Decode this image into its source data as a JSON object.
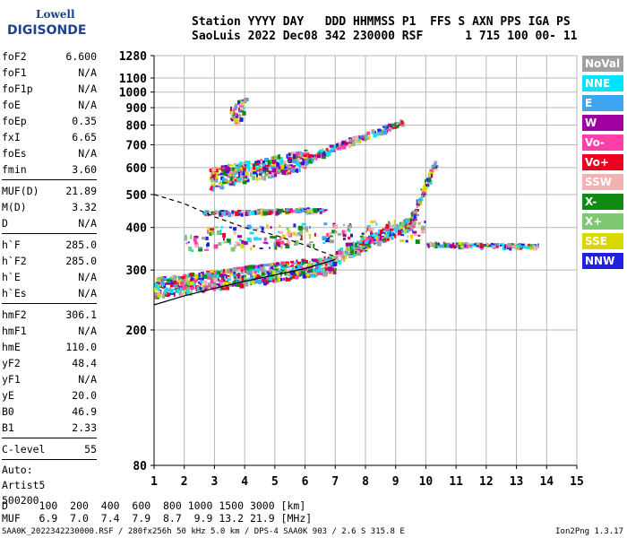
{
  "logo": {
    "line1": "Lowell",
    "line2": "DIGISONDE"
  },
  "header": {
    "line1": "Station YYYY DAY   DDD HHMMSS P1  FFS S AXN PPS IGA PS",
    "line2": "SaoLuis 2022 Dec08 342 230000 RSF      1 715 100 00- 11"
  },
  "params": {
    "group1": [
      {
        "k": "foF2",
        "v": "6.600"
      },
      {
        "k": "foF1",
        "v": "N/A"
      },
      {
        "k": "foF1p",
        "v": "N/A"
      },
      {
        "k": "foE",
        "v": "N/A"
      },
      {
        "k": "foEp",
        "v": "0.35"
      },
      {
        "k": "fxI",
        "v": "6.65"
      },
      {
        "k": "foEs",
        "v": "N/A"
      },
      {
        "k": "fmin",
        "v": "3.60"
      }
    ],
    "group2": [
      {
        "k": "MUF(D)",
        "v": "21.89"
      },
      {
        "k": "M(D)",
        "v": "3.32"
      },
      {
        "k": "D",
        "v": "N/A"
      }
    ],
    "group3": [
      {
        "k": "h`F",
        "v": "285.0"
      },
      {
        "k": "h`F2",
        "v": "285.0"
      },
      {
        "k": "h`E",
        "v": "N/A"
      },
      {
        "k": "h`Es",
        "v": "N/A"
      }
    ],
    "group4": [
      {
        "k": "hmF2",
        "v": "306.1"
      },
      {
        "k": "hmF1",
        "v": "N/A"
      },
      {
        "k": "hmE",
        "v": "110.0"
      },
      {
        "k": "yF2",
        "v": "48.4"
      },
      {
        "k": "yF1",
        "v": "N/A"
      },
      {
        "k": "yE",
        "v": "20.0"
      },
      {
        "k": "B0",
        "v": "46.9"
      },
      {
        "k": "B1",
        "v": "2.33"
      }
    ],
    "group5": [
      {
        "k": "C-level",
        "v": "55"
      }
    ],
    "auto": [
      "Auto:",
      "Artist5",
      "500200"
    ]
  },
  "legend": [
    {
      "label": "NoVal",
      "color": "#a0a0a0"
    },
    {
      "label": "NNE",
      "color": "#00e5ff"
    },
    {
      "label": "E",
      "color": "#3ea5f0"
    },
    {
      "label": "W",
      "color": "#a000a0"
    },
    {
      "label": "Vo-",
      "color": "#ff3ea8"
    },
    {
      "label": "Vo+",
      "color": "#ee0020"
    },
    {
      "label": "SSW",
      "color": "#f5b0b0"
    },
    {
      "label": "X-",
      "color": "#108a10"
    },
    {
      "label": "X+",
      "color": "#7ec870"
    },
    {
      "label": "SSE",
      "color": "#d8d800"
    },
    {
      "label": "NNW",
      "color": "#2020e0"
    }
  ],
  "chart_data": {
    "type": "scatter",
    "title": "",
    "xlabel": "",
    "ylabel": "",
    "x_ticks": [
      1,
      2,
      3,
      4,
      5,
      6,
      7,
      8,
      9,
      10,
      11,
      12,
      13,
      14,
      15
    ],
    "y_ticks": [
      80,
      200,
      300,
      400,
      500,
      600,
      700,
      800,
      900,
      1000,
      1100,
      1280
    ],
    "xlim": [
      1,
      15
    ],
    "ylim": [
      80,
      1280
    ],
    "y_scale": "log",
    "grid": true,
    "bands": [
      {
        "name": "o-trace",
        "x0": 1.0,
        "x1": 7.0,
        "y_start": 268,
        "y_end": 315,
        "spread": 18,
        "density": 700
      },
      {
        "name": "o-trace-high",
        "x0": 7.0,
        "x1": 9.6,
        "y_start": 330,
        "y_end": 420,
        "spread": 16,
        "density": 260
      },
      {
        "name": "o-trace-cusp",
        "x0": 9.4,
        "x1": 10.3,
        "y_start": 400,
        "y_end": 620,
        "spread": 20,
        "density": 90
      },
      {
        "name": "x-trace-tail",
        "x0": 10.0,
        "x1": 13.7,
        "y_start": 360,
        "y_end": 355,
        "spread": 4,
        "density": 160
      },
      {
        "name": "second-hop",
        "x0": 2.8,
        "x1": 6.0,
        "y_start": 560,
        "y_end": 640,
        "spread": 40,
        "density": 360
      },
      {
        "name": "second-hop-high",
        "x0": 6.0,
        "x1": 9.2,
        "y_start": 640,
        "y_end": 820,
        "spread": 15,
        "density": 140
      },
      {
        "name": "es-band",
        "x0": 2.6,
        "x1": 6.6,
        "y_start": 445,
        "y_end": 455,
        "spread": 5,
        "density": 160
      },
      {
        "name": "scatter-low",
        "x0": 2.0,
        "x1": 10.0,
        "y_start": 370,
        "y_end": 400,
        "spread": 30,
        "density": 200
      },
      {
        "name": "high-sparse",
        "x0": 3.5,
        "x1": 4.0,
        "y_start": 850,
        "y_end": 920,
        "spread": 60,
        "density": 45
      }
    ],
    "curves": [
      {
        "name": "profile-solid",
        "style": "solid",
        "points": [
          [
            1.0,
            237
          ],
          [
            2,
            252
          ],
          [
            3,
            265
          ],
          [
            4,
            278
          ],
          [
            5,
            290
          ],
          [
            6,
            303
          ],
          [
            7,
            322
          ]
        ]
      },
      {
        "name": "profile-dashed",
        "style": "dashed",
        "points": [
          [
            1.0,
            500
          ],
          [
            2,
            470
          ],
          [
            3,
            430
          ],
          [
            4,
            400
          ],
          [
            5,
            380
          ],
          [
            6,
            355
          ],
          [
            7,
            328
          ]
        ]
      }
    ],
    "colors": [
      "#00e5ff",
      "#3ea5f0",
      "#a000a0",
      "#ff3ea8",
      "#ee0020",
      "#f5b0b0",
      "#108a10",
      "#7ec870",
      "#d8d800",
      "#2020e0",
      "#a0a0a0"
    ]
  },
  "bottom": {
    "line1": "D     100  200  400  600  800 1000 1500 3000 [km]",
    "line2": "MUF   6.9  7.0  7.4  7.9  8.7  9.9 13.2 21.9 [MHz]"
  },
  "footer": "SAA0K_2022342230000.RSF / 280fx256h 50 kHz 5.0 km / DPS-4 SAA0K 903 / 2.6 S 315.8 E",
  "version": "Ion2Png 1.3.17"
}
